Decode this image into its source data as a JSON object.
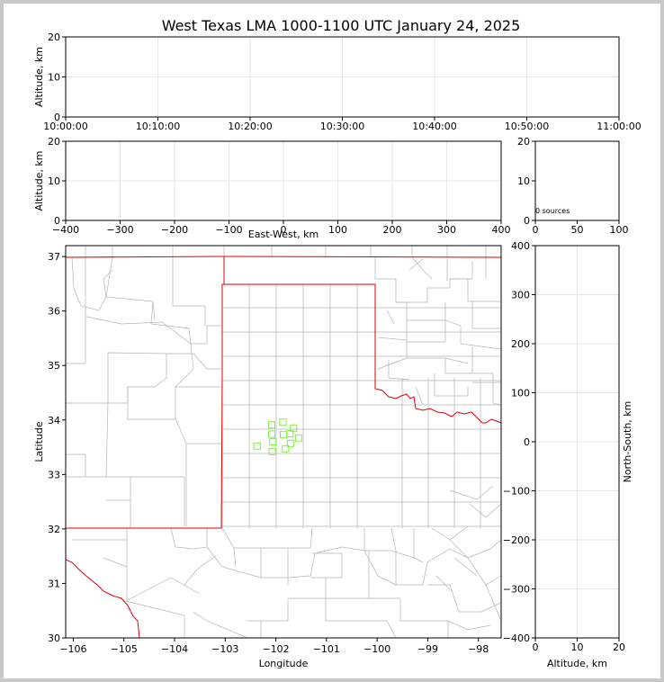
{
  "chart_data": [
    {
      "type": "scatter",
      "panel": "altitude-vs-time",
      "title": "West Texas LMA 1000-1100 UTC January 24, 2025",
      "ylabel": "Altitude, km",
      "x_ticks": [
        "10:00:00",
        "10:10:00",
        "10:20:00",
        "10:30:00",
        "10:40:00",
        "10:50:00",
        "11:00:00"
      ],
      "y_ticks": [
        0,
        10,
        20
      ],
      "ylim": [
        0,
        20
      ],
      "grid": true,
      "points": []
    },
    {
      "type": "scatter",
      "panel": "altitude-vs-east-west",
      "xlabel": "East-West, km",
      "ylabel": "Altitude, km",
      "xlim": [
        -400,
        400
      ],
      "ylim": [
        0,
        20
      ],
      "x_ticks": [
        -400,
        -300,
        -200,
        -100,
        0,
        100,
        200,
        300,
        400
      ],
      "y_ticks": [
        0,
        10,
        20
      ],
      "grid": true,
      "points": []
    },
    {
      "type": "bar",
      "panel": "altitude-histogram",
      "xlim": [
        0,
        100
      ],
      "ylim": [
        0,
        20
      ],
      "x_ticks": [
        0,
        50,
        100
      ],
      "y_ticks": [
        0,
        10,
        20
      ],
      "annotation": "0 sources",
      "values": []
    },
    {
      "type": "scatter",
      "panel": "plan-view-map",
      "xlabel": "Longitude",
      "ylabel": "Latitude",
      "xlim": [
        -106.15,
        -97.55
      ],
      "ylim": [
        30,
        37.2
      ],
      "x_ticks": [
        -106,
        -105,
        -104,
        -103,
        -102,
        -101,
        -100,
        -99,
        -98
      ],
      "y_ticks": [
        30,
        31,
        32,
        33,
        34,
        35,
        36,
        37
      ],
      "marker_color": "#80f040",
      "station_points": [
        {
          "lon": -102.37,
          "lat": 33.52
        },
        {
          "lon": -102.08,
          "lat": 33.91
        },
        {
          "lon": -102.08,
          "lat": 33.74
        },
        {
          "lon": -102.06,
          "lat": 33.6
        },
        {
          "lon": -102.07,
          "lat": 33.42
        },
        {
          "lon": -101.86,
          "lat": 33.96
        },
        {
          "lon": -101.85,
          "lat": 33.73
        },
        {
          "lon": -101.81,
          "lat": 33.47
        },
        {
          "lon": -101.72,
          "lat": 33.75
        },
        {
          "lon": -101.71,
          "lat": 33.57
        },
        {
          "lon": -101.65,
          "lat": 33.85
        },
        {
          "lon": -101.55,
          "lat": 33.67
        }
      ]
    },
    {
      "type": "scatter",
      "panel": "north-south-vs-altitude",
      "xlabel": "Altitude, km",
      "ylabel": "North-South, km",
      "xlim": [
        0,
        20
      ],
      "ylim": [
        -400,
        400
      ],
      "x_ticks": [
        0,
        10,
        20
      ],
      "y_ticks": [
        -400,
        -300,
        -200,
        -100,
        0,
        100,
        200,
        300,
        400
      ],
      "grid": true,
      "points": []
    }
  ]
}
